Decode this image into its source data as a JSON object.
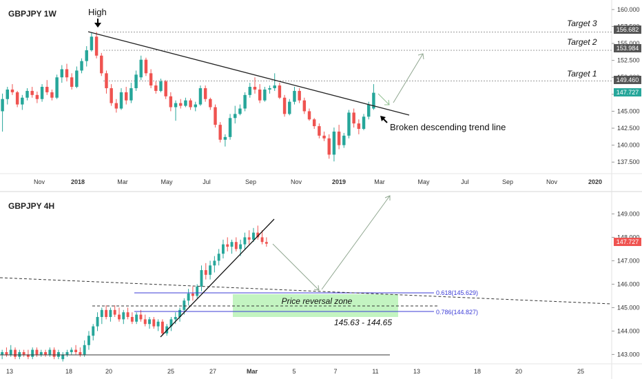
{
  "chart_data": [
    {
      "type": "candlestick",
      "title": "GBPJPY 1W",
      "x_ticks": [
        "Nov",
        "2018",
        "Mar",
        "May",
        "Jul",
        "Sep",
        "Nov",
        "2019",
        "Mar",
        "May",
        "Jul",
        "Sep",
        "Nov",
        "2020"
      ],
      "y_ticks": [
        "160.000",
        "157.500",
        "155.000",
        "152.500",
        "150.000",
        "147.500",
        "145.000",
        "142.500",
        "140.000",
        "137.500"
      ],
      "ylim": [
        136.0,
        161.0
      ],
      "last_price": "147.727",
      "high_label": "High",
      "trend_label": "Broken descending trend line",
      "targets": [
        {
          "label": "Target 3",
          "value": "156.682",
          "level": 156.682
        },
        {
          "label": "Target 2",
          "value": "153.984",
          "level": 153.984
        },
        {
          "label": "Target 1",
          "value": "149.460",
          "level": 149.46
        }
      ],
      "colors": {
        "up": "#26a69a",
        "down": "#ef5350",
        "price_tag": "#ef5350",
        "target_tag": "#555555"
      },
      "ohlc": [
        {
          "o": 145.0,
          "h": 147.6,
          "l": 142.0,
          "c": 146.8
        },
        {
          "o": 146.8,
          "h": 148.6,
          "l": 146.0,
          "c": 148.2
        },
        {
          "o": 148.2,
          "h": 149.0,
          "l": 147.4,
          "c": 147.8
        },
        {
          "o": 147.8,
          "h": 148.0,
          "l": 145.6,
          "c": 146.0
        },
        {
          "o": 146.0,
          "h": 147.4,
          "l": 145.2,
          "c": 147.0
        },
        {
          "o": 147.0,
          "h": 148.4,
          "l": 146.6,
          "c": 148.0
        },
        {
          "o": 148.0,
          "h": 148.6,
          "l": 147.0,
          "c": 147.4
        },
        {
          "o": 147.4,
          "h": 147.9,
          "l": 146.2,
          "c": 146.8
        },
        {
          "o": 146.8,
          "h": 149.0,
          "l": 146.4,
          "c": 148.6
        },
        {
          "o": 148.6,
          "h": 149.6,
          "l": 147.4,
          "c": 147.8
        },
        {
          "o": 147.8,
          "h": 148.2,
          "l": 146.6,
          "c": 147.0
        },
        {
          "o": 147.0,
          "h": 150.4,
          "l": 146.8,
          "c": 150.0
        },
        {
          "o": 150.0,
          "h": 151.8,
          "l": 149.2,
          "c": 151.2
        },
        {
          "o": 151.2,
          "h": 152.0,
          "l": 149.4,
          "c": 150.0
        },
        {
          "o": 150.0,
          "h": 150.6,
          "l": 148.2,
          "c": 148.6
        },
        {
          "o": 148.6,
          "h": 151.6,
          "l": 148.4,
          "c": 151.0
        },
        {
          "o": 151.0,
          "h": 152.8,
          "l": 150.6,
          "c": 152.4
        },
        {
          "o": 152.4,
          "h": 154.6,
          "l": 151.6,
          "c": 154.0
        },
        {
          "o": 154.0,
          "h": 156.6,
          "l": 153.8,
          "c": 156.0
        },
        {
          "o": 156.0,
          "h": 156.7,
          "l": 152.8,
          "c": 153.2
        },
        {
          "o": 153.2,
          "h": 153.6,
          "l": 150.2,
          "c": 150.6
        },
        {
          "o": 150.6,
          "h": 151.0,
          "l": 147.6,
          "c": 148.4
        },
        {
          "o": 148.4,
          "h": 149.0,
          "l": 145.8,
          "c": 146.2
        },
        {
          "o": 146.2,
          "h": 146.8,
          "l": 144.8,
          "c": 145.4
        },
        {
          "o": 145.4,
          "h": 148.4,
          "l": 145.2,
          "c": 147.8
        },
        {
          "o": 147.8,
          "h": 148.6,
          "l": 146.0,
          "c": 146.6
        },
        {
          "o": 146.6,
          "h": 149.2,
          "l": 146.2,
          "c": 148.4
        },
        {
          "o": 148.4,
          "h": 151.0,
          "l": 148.0,
          "c": 150.4
        },
        {
          "o": 150.0,
          "h": 153.2,
          "l": 149.6,
          "c": 152.6
        },
        {
          "o": 152.6,
          "h": 152.9,
          "l": 150.2,
          "c": 150.6
        },
        {
          "o": 150.6,
          "h": 151.2,
          "l": 148.4,
          "c": 148.8
        },
        {
          "o": 148.8,
          "h": 149.4,
          "l": 147.6,
          "c": 148.0
        },
        {
          "o": 148.0,
          "h": 149.8,
          "l": 147.8,
          "c": 149.4
        },
        {
          "o": 149.4,
          "h": 149.6,
          "l": 146.8,
          "c": 147.2
        },
        {
          "o": 147.2,
          "h": 147.8,
          "l": 145.0,
          "c": 145.6
        },
        {
          "o": 145.6,
          "h": 146.6,
          "l": 143.6,
          "c": 146.2
        },
        {
          "o": 146.2,
          "h": 146.8,
          "l": 145.4,
          "c": 145.8
        },
        {
          "o": 145.8,
          "h": 147.0,
          "l": 145.6,
          "c": 146.6
        },
        {
          "o": 146.6,
          "h": 146.9,
          "l": 145.2,
          "c": 145.6
        },
        {
          "o": 145.6,
          "h": 146.4,
          "l": 145.0,
          "c": 146.0
        },
        {
          "o": 146.0,
          "h": 148.8,
          "l": 145.8,
          "c": 148.4
        },
        {
          "o": 148.4,
          "h": 148.8,
          "l": 146.4,
          "c": 146.8
        },
        {
          "o": 146.8,
          "h": 147.0,
          "l": 145.2,
          "c": 145.6
        },
        {
          "o": 145.6,
          "h": 146.0,
          "l": 142.6,
          "c": 143.0
        },
        {
          "o": 143.0,
          "h": 143.4,
          "l": 140.4,
          "c": 140.8
        },
        {
          "o": 140.8,
          "h": 141.6,
          "l": 139.8,
          "c": 141.2
        },
        {
          "o": 141.2,
          "h": 144.6,
          "l": 140.8,
          "c": 144.0
        },
        {
          "o": 144.0,
          "h": 145.8,
          "l": 143.2,
          "c": 144.6
        },
        {
          "o": 144.6,
          "h": 146.0,
          "l": 144.4,
          "c": 145.4
        },
        {
          "o": 145.4,
          "h": 147.8,
          "l": 145.0,
          "c": 147.4
        },
        {
          "o": 147.4,
          "h": 149.2,
          "l": 147.0,
          "c": 148.6
        },
        {
          "o": 148.6,
          "h": 150.0,
          "l": 147.6,
          "c": 148.2
        },
        {
          "o": 148.2,
          "h": 149.0,
          "l": 146.2,
          "c": 146.6
        },
        {
          "o": 146.6,
          "h": 148.6,
          "l": 146.4,
          "c": 148.2
        },
        {
          "o": 148.2,
          "h": 148.8,
          "l": 147.6,
          "c": 148.4
        },
        {
          "o": 148.4,
          "h": 150.6,
          "l": 148.0,
          "c": 148.8
        },
        {
          "o": 148.8,
          "h": 149.2,
          "l": 146.8,
          "c": 147.0
        },
        {
          "o": 147.0,
          "h": 147.4,
          "l": 144.2,
          "c": 144.6
        },
        {
          "o": 144.6,
          "h": 146.8,
          "l": 144.4,
          "c": 146.4
        },
        {
          "o": 146.4,
          "h": 148.6,
          "l": 146.0,
          "c": 148.0
        },
        {
          "o": 148.0,
          "h": 148.4,
          "l": 146.2,
          "c": 146.6
        },
        {
          "o": 146.6,
          "h": 147.0,
          "l": 144.6,
          "c": 145.0
        },
        {
          "o": 145.0,
          "h": 145.4,
          "l": 143.6,
          "c": 143.8
        },
        {
          "o": 143.8,
          "h": 144.0,
          "l": 142.4,
          "c": 142.8
        },
        {
          "o": 142.8,
          "h": 143.2,
          "l": 141.0,
          "c": 141.4
        },
        {
          "o": 141.4,
          "h": 142.0,
          "l": 140.6,
          "c": 141.0
        },
        {
          "o": 141.0,
          "h": 141.6,
          "l": 138.0,
          "c": 138.6
        },
        {
          "o": 138.6,
          "h": 142.6,
          "l": 137.6,
          "c": 142.0
        },
        {
          "o": 142.0,
          "h": 143.0,
          "l": 139.4,
          "c": 140.0
        },
        {
          "o": 140.0,
          "h": 141.8,
          "l": 139.6,
          "c": 141.4
        },
        {
          "o": 141.4,
          "h": 145.2,
          "l": 141.0,
          "c": 144.8
        },
        {
          "o": 144.8,
          "h": 145.4,
          "l": 142.6,
          "c": 143.2
        },
        {
          "o": 143.2,
          "h": 143.8,
          "l": 141.6,
          "c": 142.4
        },
        {
          "o": 142.4,
          "h": 144.6,
          "l": 142.2,
          "c": 144.2
        },
        {
          "o": 144.2,
          "h": 146.4,
          "l": 143.8,
          "c": 146.0
        },
        {
          "o": 145.4,
          "h": 149.0,
          "l": 145.2,
          "c": 147.727
        }
      ]
    },
    {
      "type": "candlestick",
      "title": "GBPJPY 4H",
      "x_ticks": [
        "13",
        "18",
        "20",
        "25",
        "27",
        "Mar",
        "5",
        "7",
        "11",
        "13",
        "18",
        "20",
        "25"
      ],
      "y_ticks": [
        "149.000",
        "148.000",
        "147.000",
        "146.000",
        "145.000",
        "144.000",
        "143.000"
      ],
      "ylim": [
        142.6,
        149.6
      ],
      "last_price": "147.727",
      "fib_levels": [
        {
          "label": "0.618(145.629)",
          "value": 145.629
        },
        {
          "label": "0.786(144.827)",
          "value": 144.827
        }
      ],
      "zone_label": "Price reversal zone",
      "zone_range": "145.63 - 144.65",
      "colors": {
        "up": "#26a69a",
        "down": "#ef5350",
        "zone": "#b9f2b6",
        "fib": "#3b3bd6"
      },
      "ohlc": [
        {
          "o": 143.0,
          "h": 143.2,
          "l": 142.8,
          "c": 143.1
        },
        {
          "o": 143.1,
          "h": 143.3,
          "l": 142.9,
          "c": 143.0
        },
        {
          "o": 143.0,
          "h": 143.4,
          "l": 142.9,
          "c": 143.2
        },
        {
          "o": 143.2,
          "h": 143.3,
          "l": 142.8,
          "c": 142.9
        },
        {
          "o": 142.9,
          "h": 143.2,
          "l": 142.8,
          "c": 143.1
        },
        {
          "o": 143.1,
          "h": 143.2,
          "l": 142.9,
          "c": 143.0
        },
        {
          "o": 143.0,
          "h": 143.2,
          "l": 142.8,
          "c": 142.9
        },
        {
          "o": 142.9,
          "h": 143.3,
          "l": 142.8,
          "c": 143.2
        },
        {
          "o": 143.2,
          "h": 143.3,
          "l": 142.9,
          "c": 143.0
        },
        {
          "o": 143.0,
          "h": 143.2,
          "l": 142.9,
          "c": 143.1
        },
        {
          "o": 143.1,
          "h": 143.2,
          "l": 142.9,
          "c": 143.0
        },
        {
          "o": 143.0,
          "h": 143.3,
          "l": 142.9,
          "c": 143.2
        },
        {
          "o": 143.2,
          "h": 143.3,
          "l": 142.8,
          "c": 142.9
        },
        {
          "o": 142.9,
          "h": 143.2,
          "l": 142.8,
          "c": 143.1
        },
        {
          "o": 142.8,
          "h": 143.1,
          "l": 142.7,
          "c": 143.0
        },
        {
          "o": 143.0,
          "h": 143.2,
          "l": 142.9,
          "c": 143.1
        },
        {
          "o": 143.1,
          "h": 143.3,
          "l": 143.0,
          "c": 143.2
        },
        {
          "o": 143.2,
          "h": 143.4,
          "l": 143.0,
          "c": 143.1
        },
        {
          "o": 143.1,
          "h": 143.3,
          "l": 142.9,
          "c": 143.0
        },
        {
          "o": 143.0,
          "h": 143.6,
          "l": 142.9,
          "c": 143.4
        },
        {
          "o": 143.4,
          "h": 144.0,
          "l": 143.2,
          "c": 143.8
        },
        {
          "o": 143.8,
          "h": 144.3,
          "l": 143.6,
          "c": 144.2
        },
        {
          "o": 144.2,
          "h": 144.8,
          "l": 144.0,
          "c": 144.6
        },
        {
          "o": 144.6,
          "h": 145.0,
          "l": 144.3,
          "c": 144.9
        },
        {
          "o": 144.9,
          "h": 145.1,
          "l": 144.5,
          "c": 144.6
        },
        {
          "o": 144.6,
          "h": 145.0,
          "l": 144.4,
          "c": 144.9
        },
        {
          "o": 144.9,
          "h": 145.1,
          "l": 144.6,
          "c": 144.7
        },
        {
          "o": 144.7,
          "h": 145.0,
          "l": 144.4,
          "c": 144.5
        },
        {
          "o": 144.5,
          "h": 144.9,
          "l": 144.3,
          "c": 144.8
        },
        {
          "o": 144.8,
          "h": 145.0,
          "l": 144.5,
          "c": 144.6
        },
        {
          "o": 144.6,
          "h": 144.8,
          "l": 144.3,
          "c": 144.4
        },
        {
          "o": 144.4,
          "h": 144.8,
          "l": 144.3,
          "c": 144.7
        },
        {
          "o": 144.7,
          "h": 144.9,
          "l": 144.4,
          "c": 144.5
        },
        {
          "o": 144.5,
          "h": 144.7,
          "l": 144.2,
          "c": 144.3
        },
        {
          "o": 144.3,
          "h": 144.6,
          "l": 144.1,
          "c": 144.5
        },
        {
          "o": 144.5,
          "h": 144.6,
          "l": 144.1,
          "c": 144.2
        },
        {
          "o": 144.2,
          "h": 144.5,
          "l": 144.0,
          "c": 144.4
        },
        {
          "o": 144.4,
          "h": 144.5,
          "l": 143.8,
          "c": 143.9
        },
        {
          "o": 143.9,
          "h": 144.3,
          "l": 143.8,
          "c": 144.2
        },
        {
          "o": 144.2,
          "h": 144.6,
          "l": 144.0,
          "c": 144.5
        },
        {
          "o": 144.5,
          "h": 144.8,
          "l": 144.3,
          "c": 144.6
        },
        {
          "o": 144.6,
          "h": 145.0,
          "l": 144.4,
          "c": 144.9
        },
        {
          "o": 144.9,
          "h": 145.4,
          "l": 144.7,
          "c": 145.3
        },
        {
          "o": 145.3,
          "h": 145.8,
          "l": 145.1,
          "c": 145.6
        },
        {
          "o": 145.6,
          "h": 145.9,
          "l": 145.3,
          "c": 145.5
        },
        {
          "o": 145.5,
          "h": 146.0,
          "l": 145.4,
          "c": 145.9
        },
        {
          "o": 145.9,
          "h": 146.8,
          "l": 145.7,
          "c": 146.6
        },
        {
          "o": 146.6,
          "h": 146.9,
          "l": 146.2,
          "c": 146.4
        },
        {
          "o": 146.4,
          "h": 147.0,
          "l": 146.2,
          "c": 146.8
        },
        {
          "o": 146.8,
          "h": 147.2,
          "l": 146.5,
          "c": 147.0
        },
        {
          "o": 147.0,
          "h": 147.5,
          "l": 146.8,
          "c": 147.3
        },
        {
          "o": 147.3,
          "h": 147.9,
          "l": 147.1,
          "c": 147.7
        },
        {
          "o": 147.7,
          "h": 148.0,
          "l": 147.4,
          "c": 147.6
        },
        {
          "o": 147.6,
          "h": 147.9,
          "l": 147.3,
          "c": 147.8
        },
        {
          "o": 147.8,
          "h": 148.0,
          "l": 147.4,
          "c": 147.5
        },
        {
          "o": 147.5,
          "h": 147.9,
          "l": 147.2,
          "c": 147.7
        },
        {
          "o": 147.7,
          "h": 148.2,
          "l": 147.5,
          "c": 148.0
        },
        {
          "o": 148.0,
          "h": 148.3,
          "l": 147.7,
          "c": 147.9
        },
        {
          "o": 147.9,
          "h": 148.4,
          "l": 147.8,
          "c": 148.2
        },
        {
          "o": 148.2,
          "h": 148.5,
          "l": 147.9,
          "c": 148.0
        },
        {
          "o": 148.0,
          "h": 148.3,
          "l": 147.7,
          "c": 147.8
        },
        {
          "o": 147.8,
          "h": 148.0,
          "l": 147.6,
          "c": 147.727
        }
      ]
    }
  ]
}
